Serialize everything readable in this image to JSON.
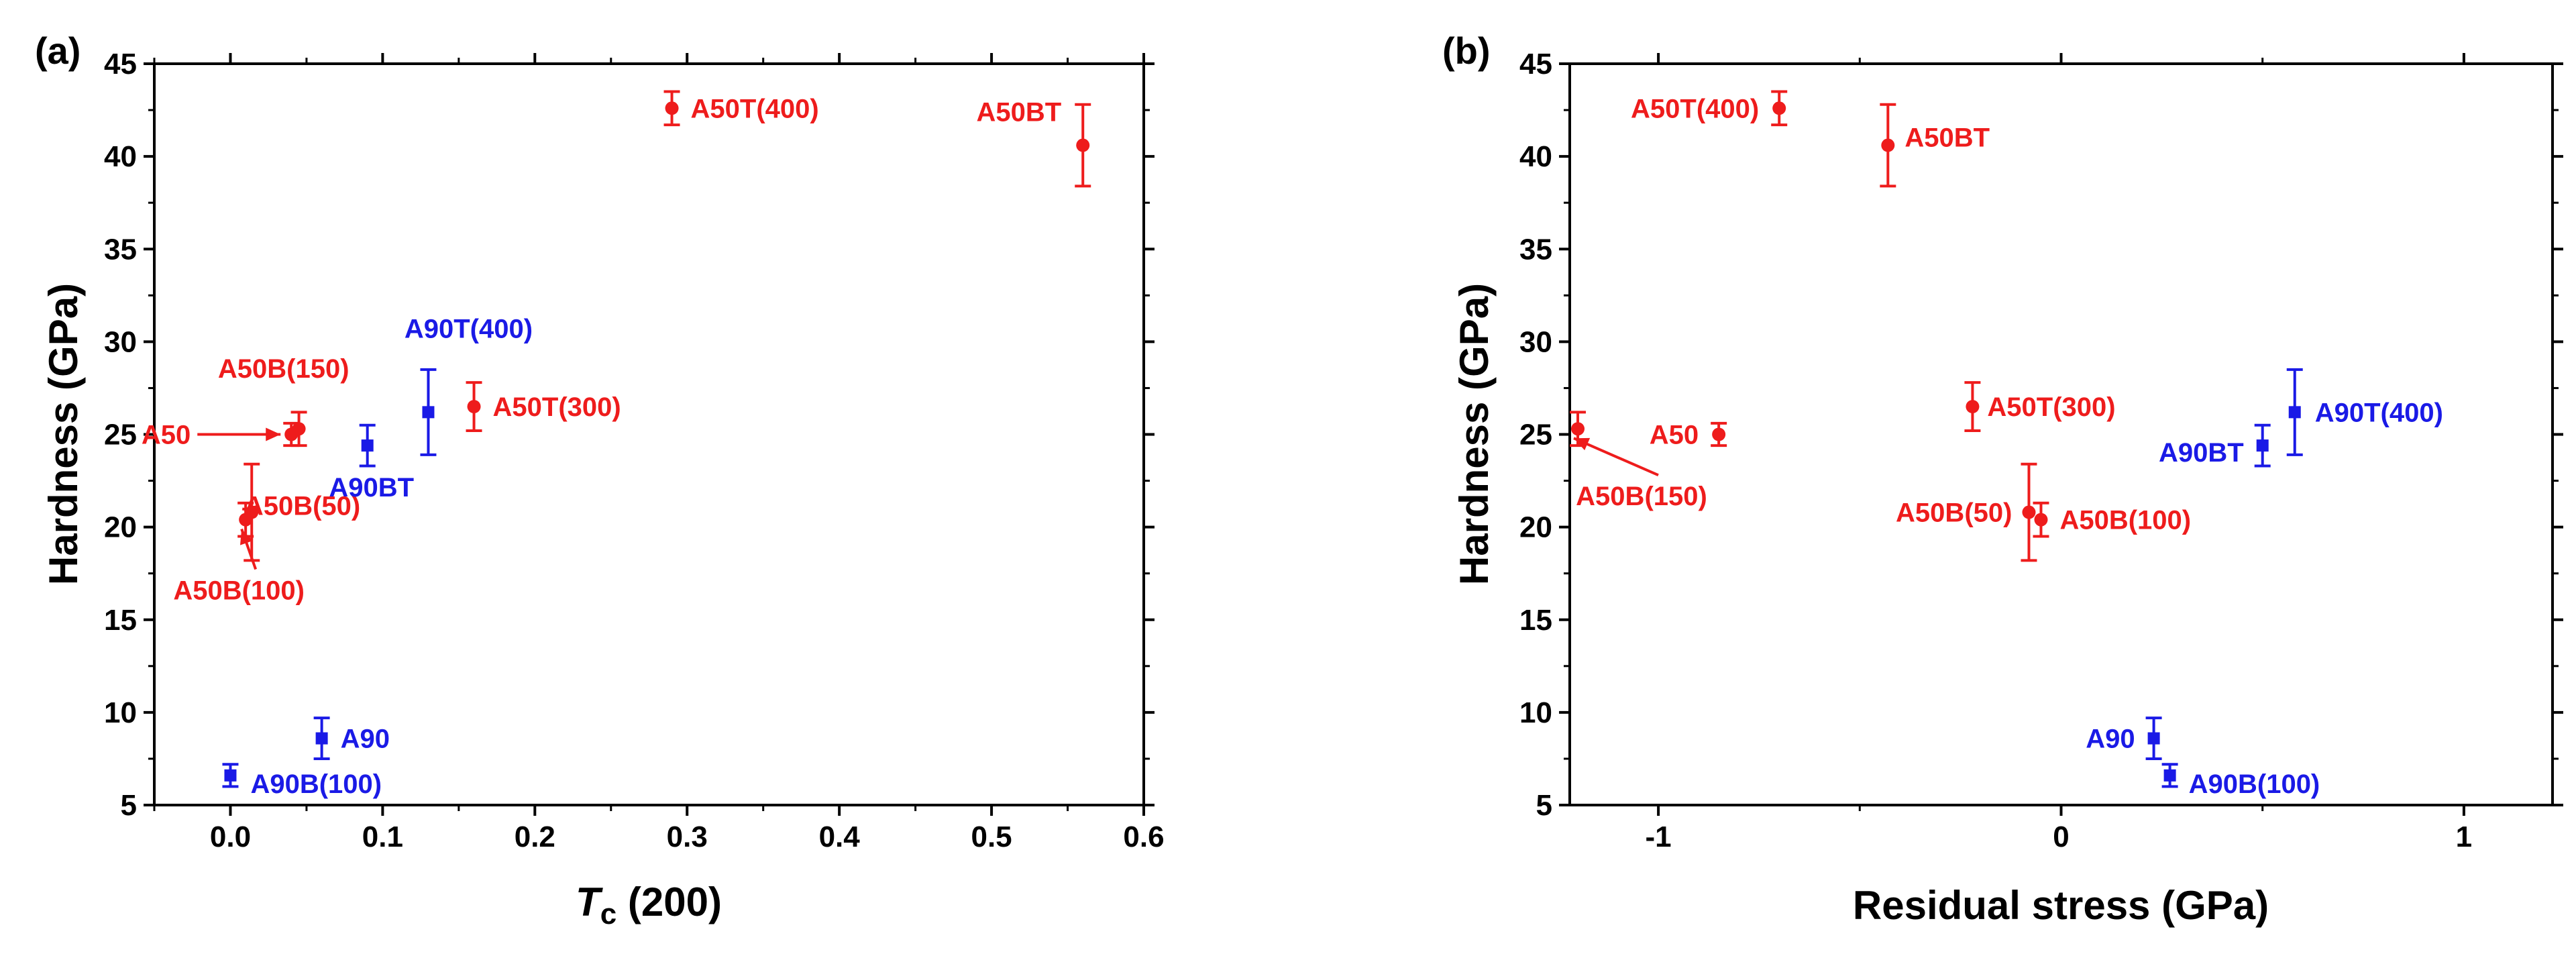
{
  "colors": {
    "red": "#ee1c1c",
    "blue": "#1a1ae6",
    "axis": "#000000"
  },
  "chart_data": [
    {
      "type": "scatter",
      "panel": "(a)",
      "xlabel": {
        "italic": "T",
        "sub": "c",
        "rest": " (200)"
      },
      "ylabel": "Hardness (GPa)",
      "xlim": [
        -0.05,
        0.6
      ],
      "ylim": [
        5,
        45
      ],
      "xticks": [
        0.0,
        0.1,
        0.2,
        0.3,
        0.4,
        0.5,
        0.6
      ],
      "xticklabels": [
        "0.0",
        "0.1",
        "0.2",
        "0.3",
        "0.4",
        "0.5",
        "0.6"
      ],
      "yticks": [
        5,
        10,
        15,
        20,
        25,
        30,
        35,
        40,
        45
      ],
      "yticklabels": [
        "5",
        "10",
        "15",
        "20",
        "25",
        "30",
        "35",
        "40",
        "45"
      ],
      "grid": false,
      "points": [
        {
          "label": "A50T(400)",
          "x": 0.29,
          "y": 42.6,
          "err": 0.9,
          "color": "red",
          "marker": "circle"
        },
        {
          "label": "A50BT",
          "x": 0.56,
          "y": 40.6,
          "err": 2.2,
          "color": "red",
          "marker": "circle"
        },
        {
          "label": "A50T(300)",
          "x": 0.16,
          "y": 26.5,
          "err": 1.3,
          "color": "red",
          "marker": "circle"
        },
        {
          "label": "A50B(150)",
          "x": 0.045,
          "y": 25.3,
          "err": 0.9,
          "color": "red",
          "marker": "circle"
        },
        {
          "label": "A50",
          "x": 0.04,
          "y": 25.0,
          "err": 0.6,
          "color": "red",
          "marker": "circle"
        },
        {
          "label": "A50B(50)",
          "x": 0.014,
          "y": 20.8,
          "err": 2.6,
          "color": "red",
          "marker": "circle"
        },
        {
          "label": "A50B(100)",
          "x": 0.01,
          "y": 20.4,
          "err": 0.9,
          "color": "red",
          "marker": "circle"
        },
        {
          "label": "A90T(400)",
          "x": 0.13,
          "y": 26.2,
          "err": 2.3,
          "color": "blue",
          "marker": "square"
        },
        {
          "label": "A90BT",
          "x": 0.09,
          "y": 24.4,
          "err": 1.1,
          "color": "blue",
          "marker": "square"
        },
        {
          "label": "A90",
          "x": 0.06,
          "y": 8.6,
          "err": 1.1,
          "color": "blue",
          "marker": "square"
        },
        {
          "label": "A90B(100)",
          "x": 0.0,
          "y": 6.6,
          "err": 0.6,
          "color": "blue",
          "marker": "square"
        }
      ]
    },
    {
      "type": "scatter",
      "panel": "(b)",
      "xlabel": "Residual stress (GPa)",
      "ylabel": "Hardness (GPa)",
      "xlim": [
        -1.22,
        1.22
      ],
      "ylim": [
        5,
        45
      ],
      "xticks": [
        -1,
        0,
        1
      ],
      "xticklabels": [
        "-1",
        "0",
        "1"
      ],
      "yticks": [
        5,
        10,
        15,
        20,
        25,
        30,
        35,
        40,
        45
      ],
      "yticklabels": [
        "5",
        "10",
        "15",
        "20",
        "25",
        "30",
        "35",
        "40",
        "45"
      ],
      "grid": false,
      "points": [
        {
          "label": "A50T(400)",
          "x": -0.7,
          "y": 42.6,
          "err": 0.9,
          "color": "red",
          "marker": "circle"
        },
        {
          "label": "A50BT",
          "x": -0.43,
          "y": 40.6,
          "err": 2.2,
          "color": "red",
          "marker": "circle"
        },
        {
          "label": "A50T(300)",
          "x": -0.22,
          "y": 26.5,
          "err": 1.3,
          "color": "red",
          "marker": "circle"
        },
        {
          "label": "A50",
          "x": -0.85,
          "y": 25.0,
          "err": 0.6,
          "color": "red",
          "marker": "circle"
        },
        {
          "label": "A50B(150)",
          "x": -1.2,
          "y": 25.3,
          "err": 0.9,
          "color": "red",
          "marker": "circle"
        },
        {
          "label": "A50B(50)",
          "x": -0.08,
          "y": 20.8,
          "err": 2.6,
          "color": "red",
          "marker": "circle"
        },
        {
          "label": "A50B(100)",
          "x": -0.05,
          "y": 20.4,
          "err": 0.9,
          "color": "red",
          "marker": "circle"
        },
        {
          "label": "A90T(400)",
          "x": 0.58,
          "y": 26.2,
          "err": 2.3,
          "color": "blue",
          "marker": "square"
        },
        {
          "label": "A90BT",
          "x": 0.5,
          "y": 24.4,
          "err": 1.1,
          "color": "blue",
          "marker": "square"
        },
        {
          "label": "A90",
          "x": 0.23,
          "y": 8.6,
          "err": 1.1,
          "color": "blue",
          "marker": "square"
        },
        {
          "label": "A90B(100)",
          "x": 0.27,
          "y": 6.6,
          "err": 0.6,
          "color": "blue",
          "marker": "square"
        }
      ]
    }
  ]
}
